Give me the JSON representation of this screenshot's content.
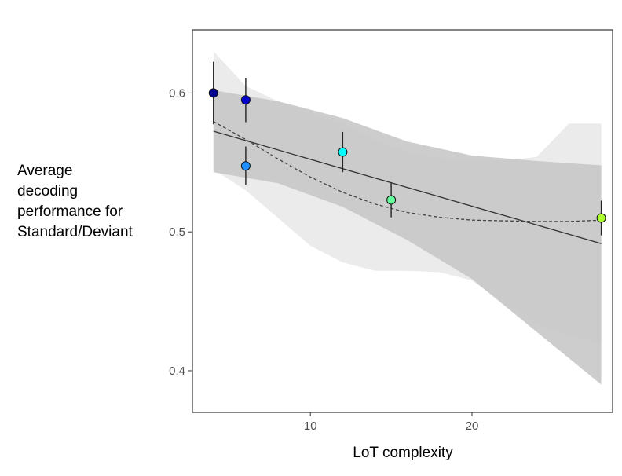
{
  "chart_data": {
    "type": "scatter",
    "title": "",
    "xlabel": "LoT complexity",
    "ylabel_lines": [
      "Average",
      "decoding",
      "performance for",
      "Standard/Deviant"
    ],
    "x_ticks": [
      10,
      20
    ],
    "y_tick_labels": [
      {
        "value": 0.6,
        "label": "0.6"
      },
      {
        "value": 0.5,
        "label": "0.5"
      },
      {
        "value": 0.4,
        "label": "0.4"
      }
    ],
    "xlim": [
      2.7,
      28.7
    ],
    "ylim": [
      0.37,
      0.6455
    ],
    "points": [
      {
        "x": 4,
        "y": 0.6,
        "err": 0.0225,
        "color": "#00008b"
      },
      {
        "x": 6,
        "y": 0.595,
        "err": 0.016,
        "color": "#0000cd"
      },
      {
        "x": 6,
        "y": 0.5475,
        "err": 0.014,
        "color": "#1e90ff"
      },
      {
        "x": 12,
        "y": 0.5575,
        "err": 0.0145,
        "color": "#00ffff"
      },
      {
        "x": 15,
        "y": 0.523,
        "err": 0.0125,
        "color": "#66ff99"
      },
      {
        "x": 28,
        "y": 0.51,
        "err": 0.0125,
        "color": "#adff2f"
      }
    ],
    "linear_fit": {
      "x": [
        4,
        28
      ],
      "y": [
        0.5725,
        0.4915
      ]
    },
    "linear_band": {
      "x": [
        4,
        8,
        12,
        16,
        20,
        24,
        28
      ],
      "upper": [
        0.602,
        0.594,
        0.582,
        0.565,
        0.555,
        0.551,
        0.548
      ],
      "lower": [
        0.543,
        0.535,
        0.518,
        0.494,
        0.466,
        0.428,
        0.39
      ]
    },
    "quadratic_fit": {
      "x": [
        4,
        6,
        8,
        10,
        12,
        14,
        16,
        18,
        20,
        22,
        24,
        26,
        28
      ],
      "y": [
        0.5795,
        0.5665,
        0.5525,
        0.5395,
        0.5285,
        0.52,
        0.514,
        0.5105,
        0.5085,
        0.508,
        0.5075,
        0.5075,
        0.5085
      ]
    },
    "quadratic_band": {
      "x": [
        4,
        6,
        8,
        10,
        12,
        14,
        16,
        18,
        20,
        22,
        24,
        26,
        28
      ],
      "upper": [
        0.63,
        0.605,
        0.594,
        0.586,
        0.578,
        0.566,
        0.558,
        0.553,
        0.551,
        0.551,
        0.554,
        0.578,
        0.578
      ],
      "lower": [
        0.545,
        0.53,
        0.51,
        0.49,
        0.478,
        0.472,
        0.472,
        0.471,
        0.465,
        0.448,
        0.434,
        0.425,
        0.42
      ]
    },
    "grid": false,
    "legend": "none"
  }
}
